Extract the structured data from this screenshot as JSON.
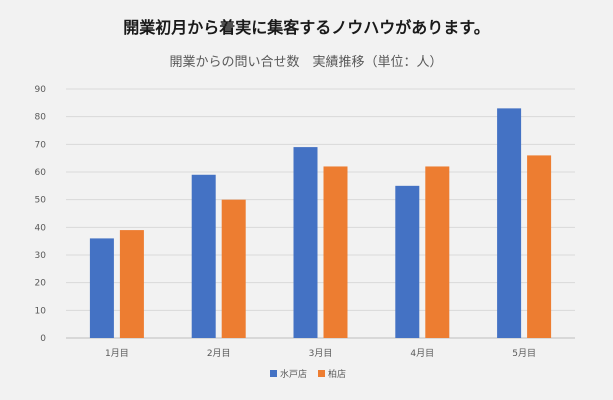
{
  "headline": "開業初月から着実に集客するノウハウがあります。",
  "chart_data": {
    "type": "bar",
    "title": "開業からの問い合せ数　実績推移（単位：人）",
    "xlabel": "",
    "ylabel": "",
    "categories": [
      "1月目",
      "2月目",
      "3月目",
      "4月目",
      "5月目"
    ],
    "series": [
      {
        "name": "水戸店",
        "color": "#4472c4",
        "values": [
          36,
          59,
          69,
          55,
          83
        ]
      },
      {
        "name": "柏店",
        "color": "#ed7d31",
        "values": [
          39,
          50,
          62,
          62,
          66
        ]
      }
    ],
    "ylim": [
      0,
      90
    ],
    "yticks": [
      0,
      10,
      20,
      30,
      40,
      50,
      60,
      70,
      80,
      90
    ],
    "grid": true,
    "legend": "bottom"
  }
}
